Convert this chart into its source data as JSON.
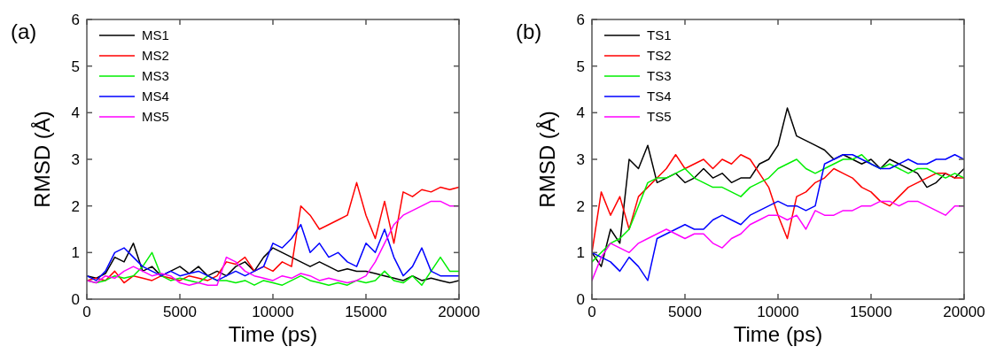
{
  "chart_data": [
    {
      "type": "line",
      "title": "(a)",
      "xlabel": "Time (ps)",
      "ylabel": "RMSD (Å)",
      "legend": "top left",
      "xlim": [
        0,
        20000
      ],
      "ylim": [
        0,
        6
      ],
      "xticks": [
        0,
        5000,
        10000,
        15000,
        20000
      ],
      "yticks": [
        0,
        1,
        2,
        3,
        4,
        5,
        6
      ],
      "x": [
        0,
        500,
        1000,
        1500,
        2000,
        2500,
        3000,
        3500,
        4000,
        4500,
        5000,
        5500,
        6000,
        6500,
        7000,
        7500,
        8000,
        8500,
        9000,
        9500,
        10000,
        10500,
        11000,
        11500,
        12000,
        12500,
        13000,
        13500,
        14000,
        14500,
        15000,
        15500,
        16000,
        16500,
        17000,
        17500,
        18000,
        18500,
        19000,
        19500,
        20000
      ],
      "series": [
        {
          "name": "MS1",
          "color": "#000000",
          "values": [
            0.5,
            0.45,
            0.55,
            0.9,
            0.8,
            1.2,
            0.6,
            0.7,
            0.5,
            0.6,
            0.7,
            0.55,
            0.7,
            0.5,
            0.6,
            0.5,
            0.7,
            0.8,
            0.6,
            0.9,
            1.1,
            1.0,
            0.9,
            0.8,
            0.7,
            0.8,
            0.7,
            0.6,
            0.65,
            0.6,
            0.6,
            0.55,
            0.5,
            0.45,
            0.4,
            0.5,
            0.4,
            0.45,
            0.4,
            0.35,
            0.4
          ]
        },
        {
          "name": "MS2",
          "color": "#ff0000",
          "values": [
            0.4,
            0.45,
            0.4,
            0.6,
            0.35,
            0.5,
            0.45,
            0.4,
            0.5,
            0.45,
            0.4,
            0.5,
            0.45,
            0.4,
            0.5,
            0.8,
            0.75,
            0.9,
            0.6,
            0.7,
            0.6,
            0.8,
            0.7,
            2.0,
            1.8,
            1.5,
            1.6,
            1.7,
            1.8,
            2.5,
            1.8,
            1.3,
            2.1,
            1.2,
            2.3,
            2.2,
            2.35,
            2.3,
            2.4,
            2.35,
            2.4
          ]
        },
        {
          "name": "MS3",
          "color": "#00ee00",
          "values": [
            0.4,
            0.35,
            0.4,
            0.5,
            0.45,
            0.5,
            0.7,
            1.0,
            0.5,
            0.4,
            0.45,
            0.4,
            0.35,
            0.5,
            0.4,
            0.4,
            0.35,
            0.4,
            0.3,
            0.4,
            0.35,
            0.3,
            0.4,
            0.5,
            0.4,
            0.35,
            0.3,
            0.35,
            0.3,
            0.4,
            0.35,
            0.4,
            0.6,
            0.4,
            0.35,
            0.5,
            0.3,
            0.6,
            0.9,
            0.6,
            0.6
          ]
        },
        {
          "name": "MS4",
          "color": "#0000ff",
          "values": [
            0.5,
            0.4,
            0.6,
            1.0,
            1.1,
            0.9,
            0.7,
            0.6,
            0.5,
            0.6,
            0.5,
            0.55,
            0.6,
            0.5,
            0.4,
            0.5,
            0.6,
            0.5,
            0.6,
            0.7,
            1.2,
            1.1,
            1.3,
            1.6,
            1.0,
            1.2,
            0.9,
            1.0,
            0.8,
            0.7,
            1.2,
            1.0,
            1.5,
            0.9,
            0.5,
            0.7,
            1.1,
            0.6,
            0.5,
            0.5,
            0.5
          ]
        },
        {
          "name": "MS5",
          "color": "#ff00ff",
          "values": [
            0.4,
            0.35,
            0.5,
            0.45,
            0.6,
            0.7,
            0.6,
            0.5,
            0.55,
            0.5,
            0.35,
            0.3,
            0.35,
            0.3,
            0.3,
            0.9,
            0.8,
            0.6,
            0.5,
            0.45,
            0.4,
            0.5,
            0.45,
            0.55,
            0.5,
            0.4,
            0.45,
            0.4,
            0.35,
            0.4,
            0.5,
            0.8,
            1.2,
            1.6,
            1.8,
            1.9,
            2.0,
            2.1,
            2.1,
            2.0,
            2.0
          ]
        }
      ]
    },
    {
      "type": "line",
      "title": "(b)",
      "xlabel": "Time (ps)",
      "ylabel": "RMSD (Å)",
      "legend": "top left",
      "xlim": [
        0,
        20000
      ],
      "ylim": [
        0,
        6
      ],
      "xticks": [
        0,
        5000,
        10000,
        15000,
        20000
      ],
      "yticks": [
        0,
        1,
        2,
        3,
        4,
        5,
        6
      ],
      "x": [
        0,
        500,
        1000,
        1500,
        2000,
        2500,
        3000,
        3500,
        4000,
        4500,
        5000,
        5500,
        6000,
        6500,
        7000,
        7500,
        8000,
        8500,
        9000,
        9500,
        10000,
        10500,
        11000,
        11500,
        12000,
        12500,
        13000,
        13500,
        14000,
        14500,
        15000,
        15500,
        16000,
        16500,
        17000,
        17500,
        18000,
        18500,
        19000,
        19500,
        20000
      ],
      "series": [
        {
          "name": "TS1",
          "color": "#000000",
          "values": [
            1.0,
            0.7,
            1.5,
            1.2,
            3.0,
            2.8,
            3.3,
            2.5,
            2.6,
            2.7,
            2.5,
            2.6,
            2.8,
            2.6,
            2.7,
            2.5,
            2.6,
            2.6,
            2.9,
            3.0,
            3.3,
            4.1,
            3.5,
            3.4,
            3.3,
            3.2,
            3.0,
            3.1,
            3.0,
            2.9,
            3.0,
            2.8,
            3.0,
            2.9,
            2.8,
            2.7,
            2.4,
            2.5,
            2.7,
            2.6,
            2.8
          ]
        },
        {
          "name": "TS2",
          "color": "#ff0000",
          "values": [
            1.0,
            2.3,
            1.8,
            2.2,
            1.5,
            2.2,
            2.4,
            2.6,
            2.8,
            3.1,
            2.8,
            2.9,
            3.0,
            2.8,
            3.0,
            2.9,
            3.1,
            3.0,
            2.7,
            2.4,
            1.8,
            1.3,
            2.2,
            2.3,
            2.5,
            2.6,
            2.8,
            2.7,
            2.6,
            2.4,
            2.3,
            2.1,
            2.0,
            2.2,
            2.4,
            2.5,
            2.6,
            2.7,
            2.7,
            2.6,
            2.6
          ]
        },
        {
          "name": "TS3",
          "color": "#00ee00",
          "values": [
            0.8,
            1.0,
            1.2,
            1.3,
            1.5,
            2.0,
            2.5,
            2.6,
            2.6,
            2.7,
            2.8,
            2.6,
            2.5,
            2.4,
            2.4,
            2.3,
            2.2,
            2.4,
            2.5,
            2.6,
            2.8,
            2.9,
            3.0,
            2.8,
            2.7,
            2.8,
            2.9,
            3.0,
            3.0,
            3.1,
            2.9,
            2.8,
            2.9,
            2.8,
            2.7,
            2.8,
            2.8,
            2.7,
            2.6,
            2.7,
            2.6
          ]
        },
        {
          "name": "TS4",
          "color": "#0000ff",
          "values": [
            1.0,
            0.9,
            0.8,
            0.6,
            0.9,
            0.7,
            0.4,
            1.3,
            1.4,
            1.5,
            1.6,
            1.5,
            1.5,
            1.7,
            1.8,
            1.7,
            1.6,
            1.8,
            1.9,
            2.0,
            2.1,
            2.0,
            2.0,
            1.9,
            2.0,
            2.9,
            3.0,
            3.1,
            3.1,
            3.0,
            2.9,
            2.8,
            2.8,
            2.9,
            3.0,
            2.9,
            2.9,
            3.0,
            3.0,
            3.1,
            3.0
          ]
        },
        {
          "name": "TS5",
          "color": "#ff00ff",
          "values": [
            0.4,
            0.9,
            1.2,
            1.1,
            1.0,
            1.2,
            1.3,
            1.4,
            1.5,
            1.4,
            1.3,
            1.4,
            1.4,
            1.2,
            1.1,
            1.3,
            1.4,
            1.6,
            1.7,
            1.8,
            1.8,
            1.7,
            1.8,
            1.5,
            1.9,
            1.8,
            1.8,
            1.9,
            1.9,
            2.0,
            2.0,
            2.1,
            2.1,
            2.0,
            2.1,
            2.1,
            2.0,
            1.9,
            1.8,
            2.0,
            2.0
          ]
        }
      ]
    }
  ]
}
